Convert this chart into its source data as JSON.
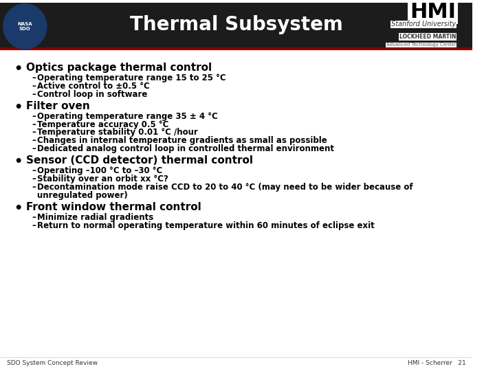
{
  "title": "Thermal Subsystem",
  "hmi_text": "HMI",
  "stanford_text": "Stanford University",
  "lockheed_text": "LOCKHEED MARTIN",
  "atc_text": "Advanced Technology Center",
  "footer_left": "SDO System Concept Review",
  "footer_right": "HMI - Scherrer   21",
  "header_bg": "#1a1a1a",
  "slide_bg": "#ffffff",
  "bullet_color": "#000000",
  "header_line_color": "#8B0000",
  "bullets": [
    {
      "title": "Optics package thermal control",
      "subbullets": [
        "Operating temperature range 15 to 25 °C",
        "Active control to ±0.5 °C",
        "Control loop in software"
      ]
    },
    {
      "title": "Filter oven",
      "subbullets": [
        "Operating temperature range 35 ± 4 °C",
        "Temperature accuracy 0.5 °C",
        "Temperature stability 0.01 °C /hour",
        "Changes in internal temperature gradients as small as possible",
        "Dedicated analog control loop in controlled thermal environment"
      ]
    },
    {
      "title": "Sensor (CCD detector) thermal control",
      "subbullets": [
        "Operating –100 °C to –30 °C",
        "Stability over an orbit xx °C?",
        "Decontamination mode raise CCD to 20 to 40 °C (may need to be wider because of\nunregulated power)"
      ]
    },
    {
      "title": "Front window thermal control",
      "subbullets": [
        "Minimize radial gradients",
        "Return to normal operating temperature within 60 minutes of eclipse exit"
      ]
    }
  ]
}
